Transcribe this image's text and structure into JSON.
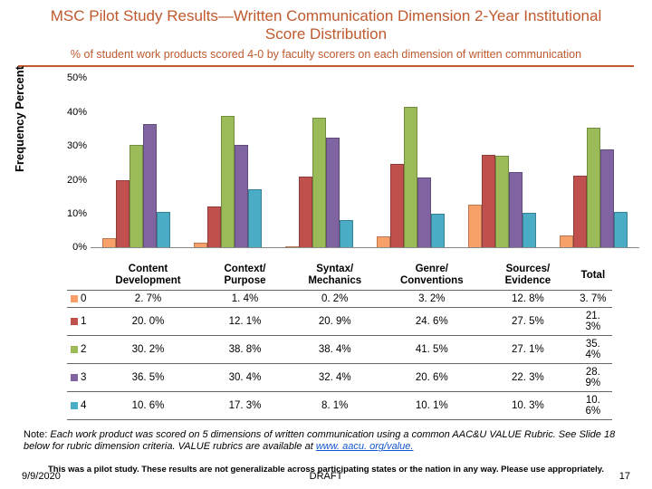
{
  "title": "MSC Pilot Study Results—Written Communication Dimension 2-Year Institutional Score Distribution",
  "subtitle": "% of student work products scored 4-0 by faculty scorers on each dimension of written communication",
  "ylabel": "Frequency Percent",
  "chart": {
    "type": "bar",
    "ylim": [
      0,
      50
    ],
    "ytick_step": 10,
    "categories": [
      "Content Development",
      "Context/ Purpose",
      "Syntax/ Mechanics",
      "Genre/ Conventions",
      "Sources/ Evidence",
      "Total"
    ],
    "series": [
      {
        "label": "0",
        "color": "#f8a06a",
        "values": [
          2.7,
          1.4,
          0.2,
          3.2,
          12.8,
          3.7
        ]
      },
      {
        "label": "1",
        "color": "#c0504d",
        "values": [
          20.0,
          12.1,
          20.9,
          24.6,
          27.5,
          21.3
        ]
      },
      {
        "label": "2",
        "color": "#9bbb59",
        "values": [
          30.2,
          38.8,
          38.4,
          41.5,
          27.1,
          35.4
        ]
      },
      {
        "label": "3",
        "color": "#8064a2",
        "values": [
          36.5,
          30.4,
          32.4,
          20.6,
          22.3,
          28.9
        ]
      },
      {
        "label": "4",
        "color": "#4bacc6",
        "values": [
          10.6,
          17.3,
          8.1,
          10.1,
          10.3,
          10.6
        ]
      }
    ],
    "display": [
      [
        "2. 7%",
        "1. 4%",
        "0. 2%",
        "3. 2%",
        "12. 8%",
        "3. 7%"
      ],
      [
        "20. 0%",
        "12. 1%",
        "20. 9%",
        "24. 6%",
        "27. 5%",
        "21. 3%"
      ],
      [
        "30. 2%",
        "38. 8%",
        "38. 4%",
        "41. 5%",
        "27. 1%",
        "35. 4%"
      ],
      [
        "36. 5%",
        "30. 4%",
        "32. 4%",
        "20. 6%",
        "22. 3%",
        "28. 9%"
      ],
      [
        "10. 6%",
        "17. 3%",
        "8. 1%",
        "10. 1%",
        "10. 3%",
        "10. 6%"
      ]
    ]
  },
  "note_prefix": "Note: ",
  "note_body": "Each work product was scored on 5 dimensions of written communication using a common AAC&U VALUE Rubric. See Slide 18 below for rubric dimension criteria. VALUE rubrics are available at ",
  "note_link": "www. aacu. org/value.",
  "disclaimer": "This was a pilot study. These results are not generalizable across participating states or the nation in any way. Please use appropriately.",
  "footer": {
    "date": "9/9/2020",
    "draft": "DRAFT",
    "page": "17"
  }
}
